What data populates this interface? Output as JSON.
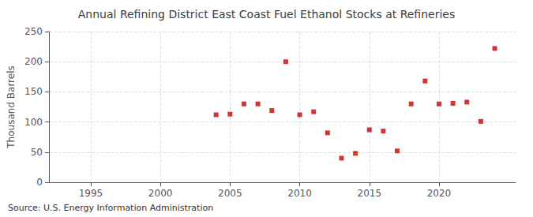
{
  "chart_data": {
    "type": "scatter",
    "title": "Annual Refining District East Coast Fuel Ethanol Stocks at Refineries",
    "ylabel": "Thousand Barrels",
    "source": "Source: U.S. Energy Information Administration",
    "x": [
      2004,
      2005,
      2006,
      2007,
      2008,
      2009,
      2010,
      2011,
      2012,
      2013,
      2014,
      2015,
      2016,
      2017,
      2018,
      2019,
      2020,
      2021,
      2022,
      2023,
      2024
    ],
    "values": [
      112,
      113,
      130,
      130,
      119,
      200,
      112,
      117,
      82,
      40,
      48,
      87,
      85,
      52,
      130,
      168,
      130,
      131,
      133,
      101,
      222
    ],
    "color": "#cc0000",
    "marker": "square",
    "xlim": [
      1992,
      2025.5
    ],
    "ylim": [
      0,
      250
    ],
    "xticks": [
      1995,
      2000,
      2005,
      2010,
      2015,
      2020
    ],
    "yticks": [
      0,
      50,
      100,
      150,
      200,
      250
    ],
    "grid": true
  }
}
